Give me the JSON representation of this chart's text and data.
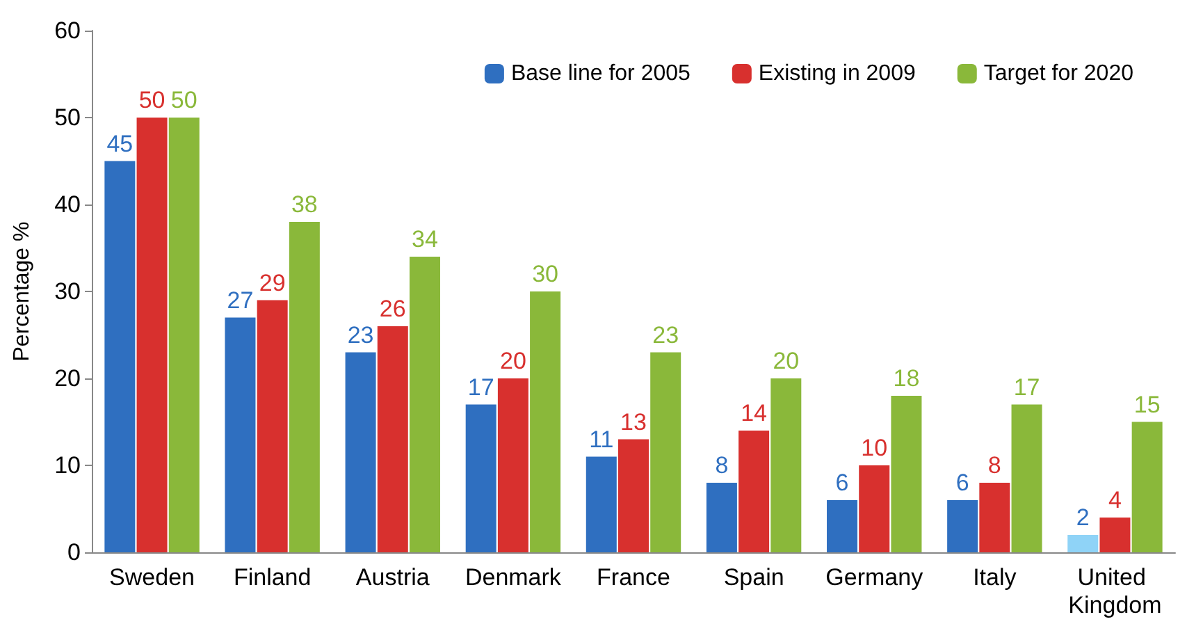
{
  "chart_data": {
    "type": "bar",
    "ylabel": "Percentage %",
    "categories": [
      "Sweden",
      "Finland",
      "Austria",
      "Denmark",
      "France",
      "Spain",
      "Germany",
      "Italy",
      "United Kingdom"
    ],
    "series": [
      {
        "name": "Base line for 2005",
        "color": "#2f6fc0",
        "colors": [
          "#2f6fc0",
          "#2f6fc0",
          "#2f6fc0",
          "#2f6fc0",
          "#2f6fc0",
          "#2f6fc0",
          "#2f6fc0",
          "#2f6fc0",
          "#8fd3f7"
        ],
        "values": [
          45,
          27,
          23,
          17,
          11,
          8,
          6,
          6,
          2
        ]
      },
      {
        "name": "Existing in 2009",
        "color": "#d8302e",
        "values": [
          50,
          29,
          26,
          20,
          13,
          14,
          10,
          8,
          4
        ]
      },
      {
        "name": "Target for 2020",
        "color": "#8ab83a",
        "values": [
          50,
          38,
          34,
          30,
          23,
          20,
          18,
          17,
          15
        ]
      }
    ],
    "ylim": [
      0,
      60
    ],
    "yticks": [
      0,
      10,
      20,
      30,
      40,
      50,
      60
    ],
    "grid": false,
    "legend": "top right",
    "data_labels": true
  }
}
